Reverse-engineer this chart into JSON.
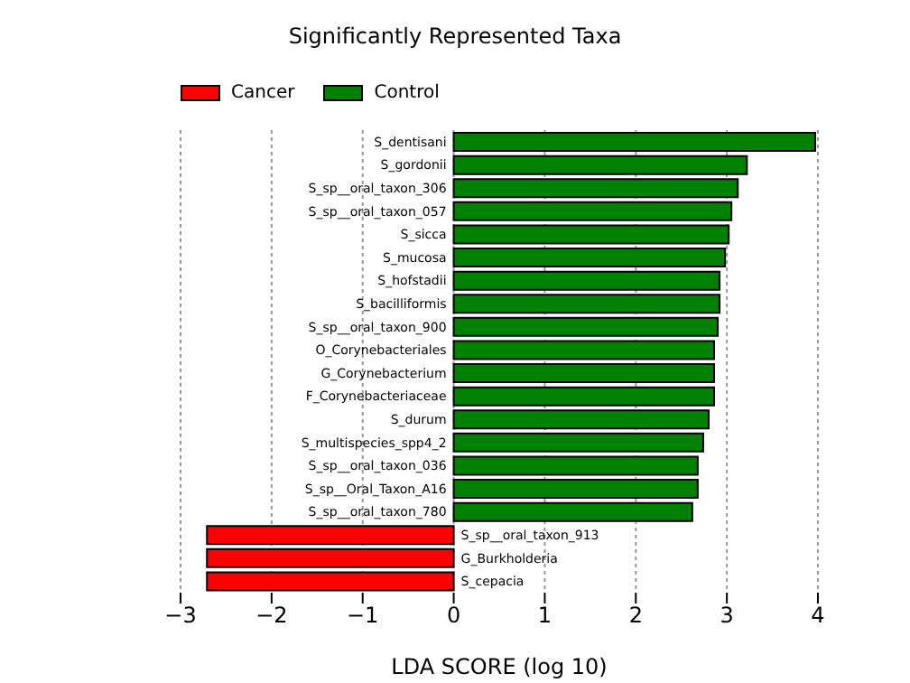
{
  "chart_data": {
    "type": "bar",
    "orientation": "horizontal",
    "stacked": true,
    "title": "Significantly Represented Taxa",
    "xlabel": "LDA SCORE (log 10)",
    "categories": [
      "S_dentisani",
      "S_gordonii",
      "S_sp__oral_taxon_306",
      "S_sp__oral_taxon_057",
      "S_sicca",
      "S_mucosa",
      "S_hofstadii",
      "S_bacilliformis",
      "S_sp__oral_taxon_900",
      "O_Corynebacteriales",
      "G_Corynebacterium",
      "F_Corynebacteriaceae",
      "S_durum",
      "S_multispecies_spp4_2",
      "S_sp__oral_taxon_036",
      "S_sp__Oral_Taxon_A16",
      "S_sp__oral_taxon_780",
      "S_sp__oral_taxon_913",
      "G_Burkholderia",
      "S_cepacia"
    ],
    "series": [
      {
        "name": "Cancer",
        "color": "#ff0000",
        "values": [
          null,
          null,
          null,
          null,
          null,
          null,
          null,
          null,
          null,
          null,
          null,
          null,
          null,
          null,
          null,
          null,
          null,
          -2.71,
          -2.71,
          -2.71
        ]
      },
      {
        "name": "Control",
        "color": "#008000",
        "values": [
          3.97,
          3.22,
          3.12,
          3.05,
          3.02,
          2.98,
          2.92,
          2.92,
          2.9,
          2.86,
          2.86,
          2.86,
          2.8,
          2.74,
          2.68,
          2.68,
          2.62,
          null,
          null,
          null
        ]
      }
    ],
    "xlim": [
      -3,
      4
    ],
    "xticks": [
      {
        "value": -3,
        "label": "−3"
      },
      {
        "value": -2,
        "label": "−2"
      },
      {
        "value": -1,
        "label": "−1"
      },
      0,
      1,
      2,
      3,
      4
    ],
    "grid": "x",
    "legend": "top left"
  }
}
